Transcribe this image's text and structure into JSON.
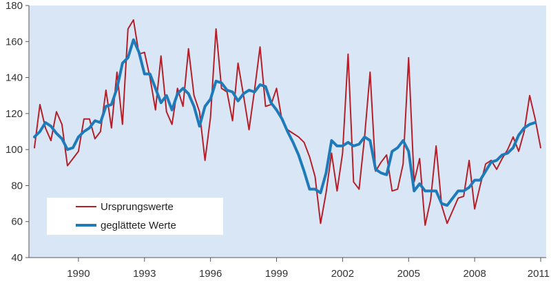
{
  "chart_data": {
    "type": "line",
    "title": "",
    "xlabel": "",
    "ylabel": "",
    "ylim": [
      40,
      180
    ],
    "yticks": [
      40,
      60,
      80,
      100,
      120,
      140,
      160,
      180
    ],
    "xlim": [
      1987.75,
      2011.25
    ],
    "xticks": [
      "1990",
      "1993",
      "1996",
      "1999",
      "2002",
      "2005",
      "2008",
      "2011"
    ],
    "grid": false,
    "plot_background": "#d9e6f5",
    "legend": {
      "placement": "bottom-left"
    },
    "series": [
      {
        "name": "Ursprungswerte",
        "color": "#b3202a",
        "x": [
          1988.0,
          1988.25,
          1988.5,
          1988.75,
          1989.0,
          1989.25,
          1989.5,
          1989.75,
          1990.0,
          1990.25,
          1990.5,
          1990.75,
          1991.0,
          1991.25,
          1991.5,
          1991.75,
          1992.0,
          1992.25,
          1992.5,
          1992.75,
          1993.0,
          1993.25,
          1993.5,
          1993.75,
          1994.0,
          1994.25,
          1994.5,
          1994.75,
          1995.0,
          1995.25,
          1995.5,
          1995.75,
          1996.0,
          1996.25,
          1996.5,
          1996.75,
          1997.0,
          1997.25,
          1997.5,
          1997.75,
          1998.0,
          1998.25,
          1998.5,
          1998.75,
          1999.0,
          1999.25,
          1999.5,
          1999.75,
          2000.0,
          2000.25,
          2000.5,
          2000.75,
          2001.0,
          2001.25,
          2001.5,
          2001.75,
          2002.0,
          2002.25,
          2002.5,
          2002.75,
          2003.0,
          2003.25,
          2003.5,
          2003.75,
          2004.0,
          2004.25,
          2004.5,
          2004.75,
          2005.0,
          2005.25,
          2005.5,
          2005.75,
          2006.0,
          2006.25,
          2006.5,
          2006.75,
          2007.0,
          2007.25,
          2007.5,
          2007.75,
          2008.0,
          2008.25,
          2008.5,
          2008.75,
          2009.0,
          2009.25,
          2009.5,
          2009.75,
          2010.0,
          2010.25,
          2010.5,
          2010.75,
          2011.0
        ],
        "values": [
          101,
          125,
          112,
          105,
          121,
          114,
          91,
          95,
          99,
          117,
          117,
          106,
          110,
          133,
          112,
          143,
          114,
          167,
          172,
          153,
          154,
          140,
          122,
          152,
          121,
          114,
          134,
          124,
          156,
          130,
          121,
          94,
          118,
          167,
          134,
          132,
          116,
          148,
          130,
          111,
          133,
          157,
          124,
          125,
          134,
          116,
          111,
          109,
          107,
          104,
          96,
          85,
          59,
          76,
          98,
          77,
          98,
          153,
          82,
          78,
          107,
          143,
          88,
          93,
          97,
          77,
          78,
          92,
          151,
          82,
          95,
          58,
          72,
          102,
          69,
          59,
          66,
          73,
          74,
          94,
          67,
          80,
          92,
          94,
          89,
          95,
          100,
          107,
          99,
          110,
          130,
          117,
          101
        ]
      },
      {
        "name": "geglättete Werte",
        "color": "#1e7ab8",
        "x": [
          1988.0,
          1988.25,
          1988.5,
          1988.75,
          1989.0,
          1989.25,
          1989.5,
          1989.75,
          1990.0,
          1990.25,
          1990.5,
          1990.75,
          1991.0,
          1991.25,
          1991.5,
          1991.75,
          1992.0,
          1992.25,
          1992.5,
          1992.75,
          1993.0,
          1993.25,
          1993.5,
          1993.75,
          1994.0,
          1994.25,
          1994.5,
          1994.75,
          1995.0,
          1995.25,
          1995.5,
          1995.75,
          1996.0,
          1996.25,
          1996.5,
          1996.75,
          1997.0,
          1997.25,
          1997.5,
          1997.75,
          1998.0,
          1998.25,
          1998.5,
          1998.75,
          1999.0,
          1999.25,
          1999.5,
          1999.75,
          2000.0,
          2000.25,
          2000.5,
          2000.75,
          2001.0,
          2001.25,
          2001.5,
          2001.75,
          2002.0,
          2002.25,
          2002.5,
          2002.75,
          2003.0,
          2003.25,
          2003.5,
          2003.75,
          2004.0,
          2004.25,
          2004.5,
          2004.75,
          2005.0,
          2005.25,
          2005.5,
          2005.75,
          2006.0,
          2006.25,
          2006.5,
          2006.75,
          2007.0,
          2007.25,
          2007.5,
          2007.75,
          2008.0,
          2008.25,
          2008.5,
          2008.75,
          2009.0,
          2009.25,
          2009.5,
          2009.75,
          2010.0,
          2010.25,
          2010.5,
          2010.75
        ],
        "values": [
          107,
          110,
          115,
          113,
          109,
          106,
          100,
          101,
          107,
          110,
          112,
          116,
          115,
          124,
          125,
          134,
          148,
          151,
          161,
          154,
          142,
          142,
          134,
          126,
          130,
          122,
          131,
          134,
          131,
          124,
          113,
          124,
          128,
          138,
          137,
          133,
          132,
          127,
          131,
          133,
          132,
          136,
          135,
          126,
          122,
          117,
          110,
          104,
          97,
          88,
          78,
          78,
          76,
          87,
          105,
          102,
          102,
          104,
          102,
          103,
          107,
          105,
          89,
          87,
          86,
          99,
          101,
          105,
          99,
          77,
          81,
          77,
          77,
          77,
          70,
          69,
          73,
          77,
          77,
          79,
          83,
          83,
          88,
          93,
          94,
          97,
          98,
          101,
          108,
          112,
          114,
          115
        ]
      }
    ]
  }
}
